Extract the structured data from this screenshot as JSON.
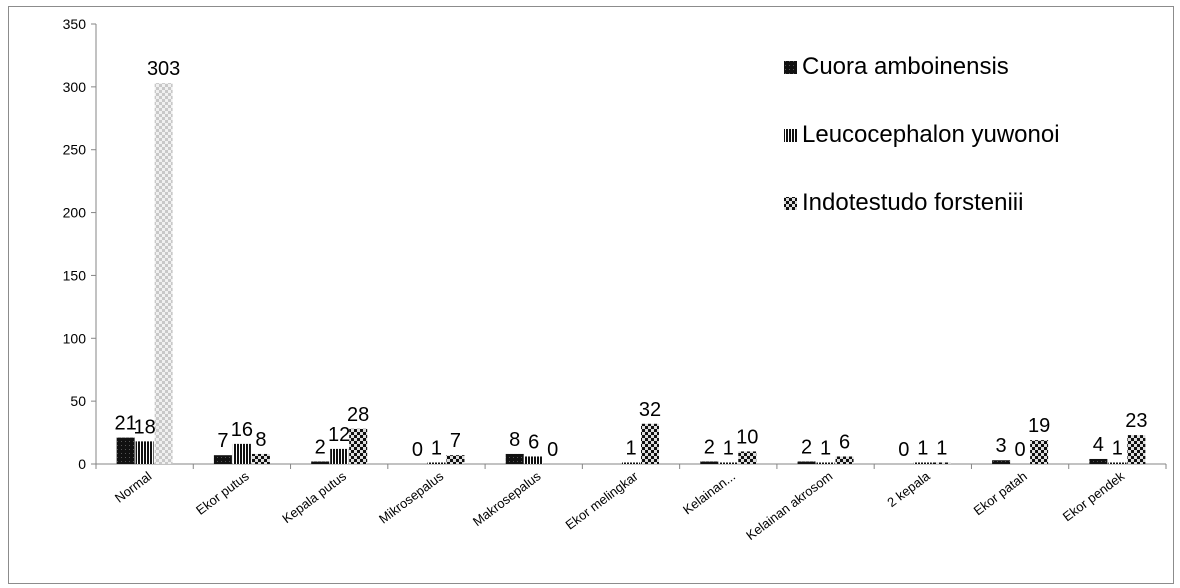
{
  "chart_data": {
    "type": "bar",
    "categories": [
      "Normal",
      "Ekor putus",
      "Kepala putus",
      "Mikrosepalus",
      "Makrosepalus",
      "Ekor melingkar",
      "Kelainan...",
      "Kelainan akrosom",
      "2 kepala",
      "Ekor patah",
      "Ekor pendek"
    ],
    "series": [
      {
        "name": "Cuora amboinensis",
        "values": [
          21,
          7,
          2,
          0,
          8,
          0,
          2,
          2,
          0,
          3,
          4
        ],
        "labels": [
          "21",
          "7",
          "2",
          "0",
          "8",
          "",
          "2",
          "2",
          "0",
          "3",
          "4"
        ],
        "pattern": "solid-dark",
        "color": "#000000"
      },
      {
        "name": "Leucocephalon yuwonoi",
        "values": [
          18,
          16,
          12,
          1,
          6,
          1,
          1,
          1,
          1,
          0,
          1
        ],
        "labels": [
          "18",
          "16",
          "12",
          "1",
          "6",
          "1",
          "1",
          "1",
          "1",
          "0",
          "1"
        ],
        "pattern": "vertical-stripes",
        "color": "#000000"
      },
      {
        "name": "Indotestudo forsteniii",
        "values": [
          303,
          8,
          28,
          7,
          0,
          32,
          10,
          6,
          1,
          19,
          23
        ],
        "labels": [
          "303",
          "8",
          "28",
          "7",
          "0",
          "32",
          "10",
          "6",
          "1",
          "19",
          "23"
        ],
        "pattern": "checker",
        "color": "#000000"
      }
    ],
    "ylim": [
      0,
      350
    ],
    "yticks": [
      0,
      50,
      100,
      150,
      200,
      250,
      300,
      350
    ],
    "grid": false,
    "legend_position": "top-right",
    "title": "",
    "xlabel": "",
    "ylabel": ""
  }
}
